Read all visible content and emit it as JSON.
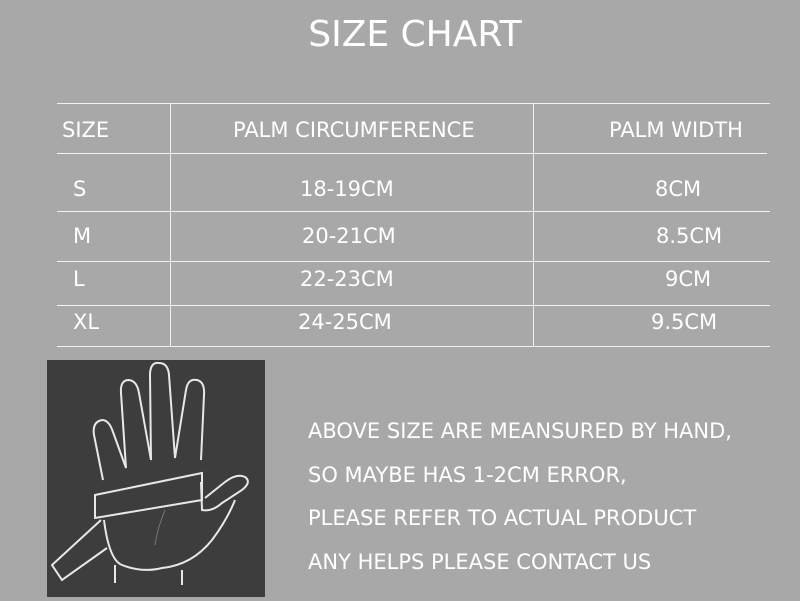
{
  "title": "SIZE CHART",
  "table": {
    "headers": [
      "SIZE",
      "PALM CIRCUMFERENCE",
      "PALM WIDTH"
    ],
    "rows": [
      [
        "S",
        "18-19CM",
        "8CM"
      ],
      [
        "M",
        "20-21CM",
        "8.5CM"
      ],
      [
        "L",
        "22-23CM",
        "9CM"
      ],
      [
        "XL",
        "24-25CM",
        "9.5CM"
      ]
    ]
  },
  "illustration": "hand-measuring-tape-icon",
  "notes": [
    "ABOVE SIZE ARE MEANSURED BY HAND,",
    "SO MAYBE HAS 1-2CM ERROR,",
    "PLEASE REFER TO ACTUAL PRODUCT",
    "ANY HELPS PLEASE CONTACT US"
  ],
  "colors": {
    "background": "#a8a8a8",
    "text": "#ffffff",
    "illustration_bg": "#3d3d3d"
  }
}
